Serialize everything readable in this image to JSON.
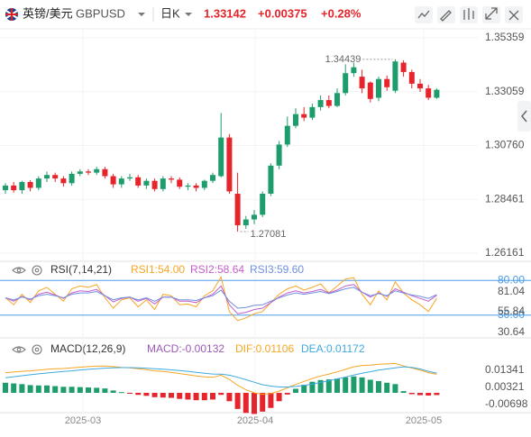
{
  "header": {
    "pair": "英镑/美元",
    "symbol": "GBPUSD",
    "period": "日K",
    "price": "1.33142",
    "change": "+0.00375",
    "change_pct": "+0.28%"
  },
  "chart_data": [
    {
      "type": "candlestick",
      "up_color": "#1e9d6c",
      "down_color": "#e5242b",
      "open": [
        1.2885,
        1.2905,
        1.2885,
        1.292,
        1.2895,
        1.2935,
        1.295,
        1.2935,
        1.2915,
        1.2955,
        1.2965,
        1.296,
        1.2975,
        1.2945,
        1.291,
        1.2935,
        1.294,
        1.2905,
        1.2925,
        1.289,
        1.2935,
        1.293,
        1.29,
        1.2905,
        1.2895,
        1.2925,
        1.2945,
        1.311,
        1.287,
        1.2735,
        1.276,
        1.278,
        1.287,
        1.299,
        1.308,
        1.316,
        1.321,
        1.3195,
        1.324,
        1.327,
        1.3245,
        1.33,
        1.3385,
        1.337,
        1.3345,
        1.328,
        1.336,
        1.331,
        1.343,
        1.339,
        1.334,
        1.332,
        1.328
      ],
      "high": [
        1.2915,
        1.292,
        1.2925,
        1.2928,
        1.2945,
        1.2965,
        1.296,
        1.2945,
        1.2965,
        1.2975,
        1.2975,
        1.2985,
        1.2985,
        1.2955,
        1.2945,
        1.2955,
        1.295,
        1.2935,
        1.2935,
        1.2945,
        1.2945,
        1.294,
        1.2915,
        1.2915,
        1.293,
        1.296,
        1.3215,
        1.3125,
        1.296,
        1.2775,
        1.28,
        1.288,
        1.3,
        1.3095,
        1.32,
        1.3235,
        1.324,
        1.3255,
        1.329,
        1.329,
        1.332,
        1.3423,
        1.343,
        1.34,
        1.335,
        1.337,
        1.3375,
        1.34439,
        1.344,
        1.34,
        1.336,
        1.3335,
        1.332
      ],
      "low": [
        1.287,
        1.2875,
        1.287,
        1.288,
        1.2885,
        1.292,
        1.292,
        1.29,
        1.2905,
        1.2945,
        1.295,
        1.295,
        1.2935,
        1.2895,
        1.2895,
        1.2925,
        1.2895,
        1.289,
        1.288,
        1.288,
        1.2915,
        1.289,
        1.2885,
        1.288,
        1.2885,
        1.2915,
        1.294,
        1.287,
        1.27081,
        1.272,
        1.274,
        1.277,
        1.286,
        1.2975,
        1.307,
        1.315,
        1.318,
        1.3185,
        1.3225,
        1.3235,
        1.324,
        1.329,
        1.337,
        1.33,
        1.326,
        1.3265,
        1.331,
        1.33,
        1.337,
        1.332,
        1.3305,
        1.327,
        1.3275
      ],
      "close": [
        1.2905,
        1.2885,
        1.292,
        1.2895,
        1.2935,
        1.295,
        1.2935,
        1.2915,
        1.2955,
        1.2965,
        1.296,
        1.2975,
        1.2945,
        1.291,
        1.2935,
        1.294,
        1.2905,
        1.2925,
        1.289,
        1.2935,
        1.293,
        1.29,
        1.2905,
        1.2895,
        1.2925,
        1.295,
        1.311,
        1.288,
        1.2735,
        1.276,
        1.278,
        1.287,
        1.299,
        1.308,
        1.316,
        1.321,
        1.3195,
        1.324,
        1.327,
        1.3245,
        1.33,
        1.3385,
        1.341,
        1.332,
        1.3275,
        1.336,
        1.3325,
        1.3435,
        1.339,
        1.334,
        1.332,
        1.328,
        1.33142
      ],
      "ylim": [
        1.25813,
        1.35744
      ],
      "yticks": [
        1.35359,
        1.33059,
        {
          "value": 1.3076,
          "label": "1.30760"
        },
        1.28461,
        1.26161
      ],
      "x_labels": [
        "2025-03",
        "2025-04",
        "2025-05"
      ]
    },
    {
      "type": "line",
      "title": "RSI(7,14,21)",
      "ylim": [
        -1.6,
        103.7
      ],
      "levels": [
        {
          "value": 80,
          "label": "80.00"
        },
        {
          "value": 30,
          "label": "30.00"
        }
      ],
      "level_color": "#4a9be8",
      "side_labels": [
        "81.04",
        "55.84",
        "30.64"
      ],
      "series": [
        {
          "label": "RSI1:54.00",
          "color": "#f5a623",
          "values": [
            55,
            45,
            60,
            48,
            65,
            70,
            60,
            50,
            68,
            72,
            70,
            74,
            55,
            40,
            52,
            55,
            42,
            52,
            38,
            60,
            58,
            45,
            46,
            42,
            58,
            65,
            85,
            35,
            22,
            26,
            32,
            35,
            48,
            60,
            68,
            72,
            66,
            70,
            75,
            62,
            72,
            82,
            84,
            60,
            45,
            65,
            52,
            78,
            62,
            52,
            45,
            35,
            54.0
          ]
        },
        {
          "label": "RSI2:58.64",
          "color": "#c25ec9",
          "values": [
            55,
            50,
            57,
            52,
            60,
            63,
            59,
            54,
            62,
            65,
            64,
            67,
            58,
            49,
            54,
            56,
            50,
            54,
            46,
            56,
            56,
            50,
            50,
            48,
            55,
            60,
            72,
            45,
            32,
            34,
            38,
            40,
            48,
            56,
            62,
            65,
            62,
            64,
            67,
            62,
            66,
            72,
            74,
            63,
            56,
            62,
            57,
            68,
            63,
            58,
            54,
            50,
            58.64
          ]
        },
        {
          "label": "RSI3:59.60",
          "color": "#6f8fe0",
          "values": [
            55,
            52,
            56,
            53,
            58,
            60,
            58,
            55,
            60,
            62,
            62,
            64,
            58,
            52,
            55,
            56,
            52,
            55,
            50,
            56,
            56,
            52,
            52,
            51,
            55,
            58,
            66,
            50,
            40,
            41,
            44,
            45,
            50,
            55,
            59,
            62,
            60,
            62,
            64,
            61,
            64,
            68,
            70,
            63,
            58,
            61,
            58,
            65,
            62,
            59,
            57,
            54,
            59.6
          ]
        }
      ]
    },
    {
      "type": "macd",
      "title": "MACD(12,26,9)",
      "ylim": [
        -0.0129,
        0.022
      ],
      "yticks": [
        0.01341,
        0.00321,
        -0.00698
      ],
      "histogram": {
        "label": "MACD:-0.00132",
        "color": "#9b59b6",
        "up_color": "#1e9d6c",
        "down_color": "#e5242b",
        "values": [
          0.006,
          0.0056,
          0.0052,
          0.0046,
          0.0044,
          0.0044,
          0.004,
          0.0036,
          0.0036,
          0.0034,
          0.0032,
          0.003,
          0.0026,
          0.0014,
          0.0004,
          -0.0002,
          -0.0012,
          -0.0018,
          -0.0026,
          -0.0028,
          -0.003,
          -0.0036,
          -0.004,
          -0.0044,
          -0.0044,
          -0.004,
          -0.0012,
          -0.005,
          -0.0096,
          -0.012,
          -0.0126,
          -0.0112,
          -0.009,
          -0.005,
          -0.001,
          0.0024,
          0.0048,
          0.0066,
          0.0076,
          0.008,
          0.0084,
          0.0092,
          0.0098,
          0.0092,
          0.0078,
          0.007,
          0.006,
          0.0052,
          0.001,
          -0.0008,
          -0.0014,
          -0.0016,
          -0.00132
        ]
      },
      "series": [
        {
          "label": "DIF:0.01106",
          "color": "#f5a623",
          "values": [
            0.012,
            0.0124,
            0.0128,
            0.0131,
            0.0135,
            0.014,
            0.0143,
            0.0145,
            0.0149,
            0.0153,
            0.0156,
            0.0159,
            0.016,
            0.0156,
            0.0152,
            0.0149,
            0.0143,
            0.0138,
            0.0131,
            0.0127,
            0.0122,
            0.0115,
            0.0108,
            0.01,
            0.0095,
            0.0092,
            0.0105,
            0.008,
            0.0045,
            0.0018,
            0.0,
            -0.0008,
            -0.0005,
            0.001,
            0.003,
            0.005,
            0.0068,
            0.0085,
            0.01,
            0.0112,
            0.0125,
            0.014,
            0.0155,
            0.0163,
            0.0165,
            0.017,
            0.0172,
            0.0175,
            0.016,
            0.0148,
            0.0135,
            0.012,
            0.01106
          ]
        },
        {
          "label": "DEA:0.01172",
          "color": "#3fa9e0",
          "values": [
            0.009,
            0.0096,
            0.0102,
            0.0108,
            0.0113,
            0.0118,
            0.0123,
            0.0127,
            0.0131,
            0.0136,
            0.014,
            0.0144,
            0.0147,
            0.0149,
            0.015,
            0.015,
            0.0149,
            0.0147,
            0.0144,
            0.0141,
            0.0137,
            0.0133,
            0.0128,
            0.0122,
            0.0117,
            0.0112,
            0.0111,
            0.0105,
            0.0093,
            0.0078,
            0.0063,
            0.0048,
            0.004,
            0.0035,
            0.0035,
            0.0038,
            0.0044,
            0.0052,
            0.0062,
            0.0072,
            0.0083,
            0.0094,
            0.0106,
            0.0117,
            0.0126,
            0.0135,
            0.0142,
            0.0149,
            0.0155,
            0.0152,
            0.0142,
            0.0128,
            0.01172
          ]
        }
      ]
    }
  ]
}
